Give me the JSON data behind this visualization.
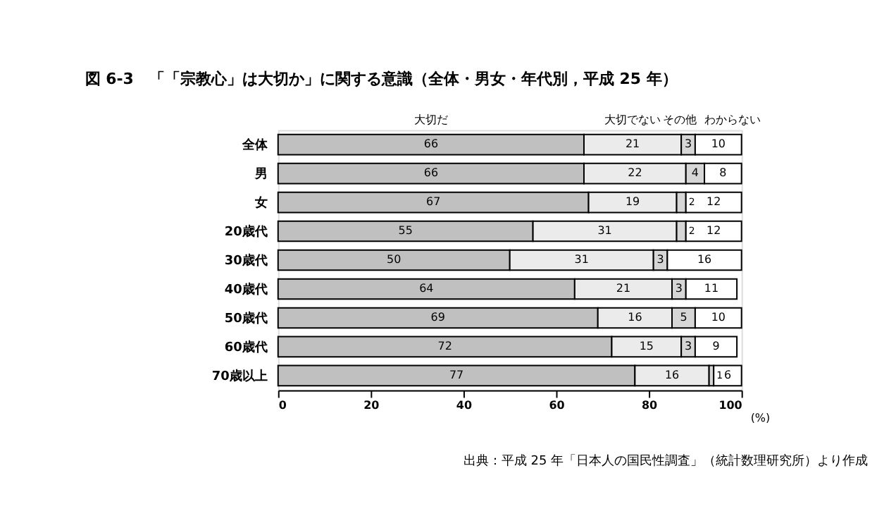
{
  "chart_data": {
    "type": "bar",
    "orientation": "horizontal",
    "stacked": true,
    "title": "図 6-3　「「宗教心」は大切か」に関する意識（全体・男女・年代別，平成 25 年）",
    "categories": [
      "全体",
      "男",
      "女",
      "20歳代",
      "30歳代",
      "40歳代",
      "50歳代",
      "60歳代",
      "70歳以上"
    ],
    "series": [
      {
        "name": "大切だ",
        "color": "#c0c0c0",
        "values": [
          66,
          66,
          67,
          55,
          50,
          64,
          69,
          72,
          77
        ]
      },
      {
        "name": "大切でない",
        "color": "#ebebeb",
        "values": [
          21,
          22,
          19,
          31,
          31,
          21,
          16,
          15,
          16
        ]
      },
      {
        "name": "その他",
        "color": "#d6d6d6",
        "values": [
          3,
          4,
          2,
          2,
          3,
          3,
          5,
          3,
          1
        ]
      },
      {
        "name": "わからない",
        "color": "#ffffff",
        "values": [
          10,
          8,
          12,
          12,
          16,
          11,
          10,
          9,
          6
        ]
      }
    ],
    "xlim": [
      0,
      100
    ],
    "xticks": [
      0,
      20,
      40,
      60,
      80,
      100
    ],
    "xlabel": "(%)",
    "data_labels": true,
    "legend": false,
    "grid": false,
    "annotations": [
      "出典：平成 25 年「日本人の国民性調査」（統計数理研究所）より作成"
    ]
  }
}
